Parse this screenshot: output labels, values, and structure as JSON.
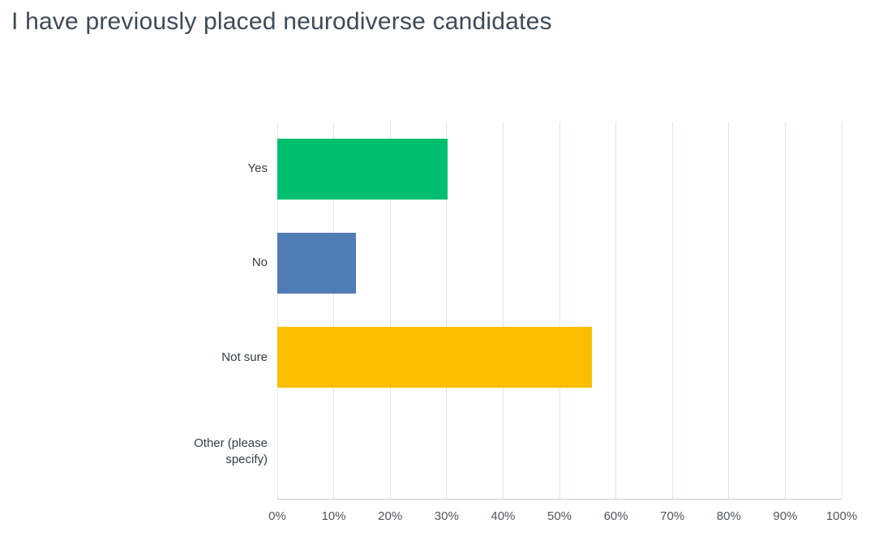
{
  "title": "I have previously placed neurodiverse candidates",
  "colors": {
    "background": "#ffffff",
    "title_text": "#3e4a57",
    "category_label_text": "#333e48",
    "tick_label_text": "#54565b",
    "gridline": "#e2e4e6",
    "axis_line": "#c9cdd0",
    "bar_green": "#00bf6f",
    "bar_blue": "#507cb6",
    "bar_yellow": "#f9be00"
  },
  "chart_data": {
    "type": "bar",
    "orientation": "horizontal",
    "title": "I have previously placed neurodiverse candidates",
    "categories": [
      "Yes",
      "No",
      "Not sure",
      "Other (please specify)"
    ],
    "values": [
      30.2,
      13.9,
      55.8,
      0
    ],
    "bar_colors": [
      "#00bf6f",
      "#507cb6",
      "#f9be00",
      null
    ],
    "x_ticks": [
      "0%",
      "10%",
      "20%",
      "30%",
      "40%",
      "50%",
      "60%",
      "70%",
      "80%",
      "90%",
      "100%"
    ],
    "xlim": [
      0,
      100
    ],
    "xlabel": "",
    "ylabel": "",
    "grid": true,
    "legend": false
  }
}
